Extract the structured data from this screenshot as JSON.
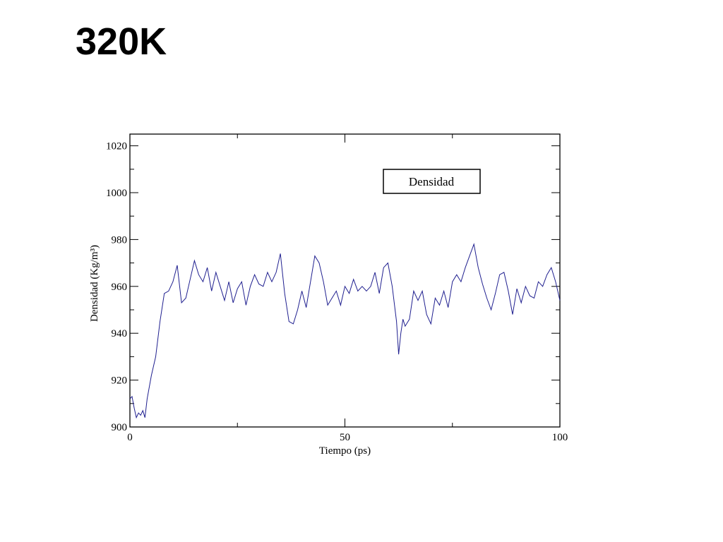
{
  "slide": {
    "title": "320K"
  },
  "chart_data": {
    "type": "line",
    "xlabel": "Tiempo (ps)",
    "ylabel": "Densidad (Kg/m³)",
    "xlim": [
      0,
      100
    ],
    "ylim": [
      900,
      1025
    ],
    "x_ticks": [
      0,
      50,
      100
    ],
    "y_ticks": [
      900,
      920,
      940,
      960,
      980,
      1000,
      1020
    ],
    "legend": {
      "position": "top-right",
      "entries": [
        "Densidad"
      ]
    },
    "colors": {
      "series": "#1f1f8f",
      "frame": "#000000"
    },
    "series": [
      {
        "name": "Densidad",
        "x": [
          0,
          0.5,
          1,
          1.5,
          2,
          2.5,
          3,
          3.5,
          4,
          5,
          6,
          7,
          8,
          9,
          10,
          11,
          12,
          13,
          14,
          15,
          16,
          17,
          18,
          19,
          20,
          21,
          22,
          23,
          24,
          25,
          26,
          27,
          28,
          29,
          30,
          31,
          32,
          33,
          34,
          35,
          36,
          37,
          38,
          39,
          40,
          41,
          42,
          43,
          44,
          45,
          46,
          47,
          48,
          49,
          50,
          51,
          52,
          53,
          54,
          55,
          56,
          57,
          58,
          59,
          60,
          61,
          62,
          62.5,
          63,
          63.5,
          64,
          65,
          66,
          67,
          68,
          69,
          70,
          71,
          72,
          73,
          74,
          75,
          76,
          77,
          78,
          79,
          80,
          81,
          82,
          83,
          84,
          85,
          86,
          87,
          88,
          89,
          90,
          91,
          92,
          93,
          94,
          95,
          96,
          97,
          98,
          99,
          100
        ],
        "y": [
          912,
          913,
          908,
          904,
          906,
          905,
          907,
          904,
          912,
          922,
          930,
          945,
          957,
          958,
          962,
          969,
          953,
          955,
          963,
          971,
          965,
          962,
          968,
          958,
          966,
          960,
          954,
          962,
          953,
          959,
          962,
          952,
          960,
          965,
          961,
          960,
          966,
          962,
          966,
          974,
          957,
          945,
          944,
          950,
          958,
          951,
          962,
          973,
          970,
          962,
          952,
          955,
          958,
          952,
          960,
          957,
          963,
          958,
          960,
          958,
          960,
          966,
          957,
          968,
          970,
          960,
          945,
          931,
          940,
          946,
          943,
          946,
          958,
          954,
          958,
          948,
          944,
          955,
          952,
          958,
          951,
          962,
          965,
          962,
          968,
          973,
          978,
          968,
          961,
          955,
          950,
          957,
          965,
          966,
          958,
          948,
          959,
          953,
          960,
          956,
          955,
          962,
          960,
          965,
          968,
          962,
          954
        ]
      }
    ]
  }
}
